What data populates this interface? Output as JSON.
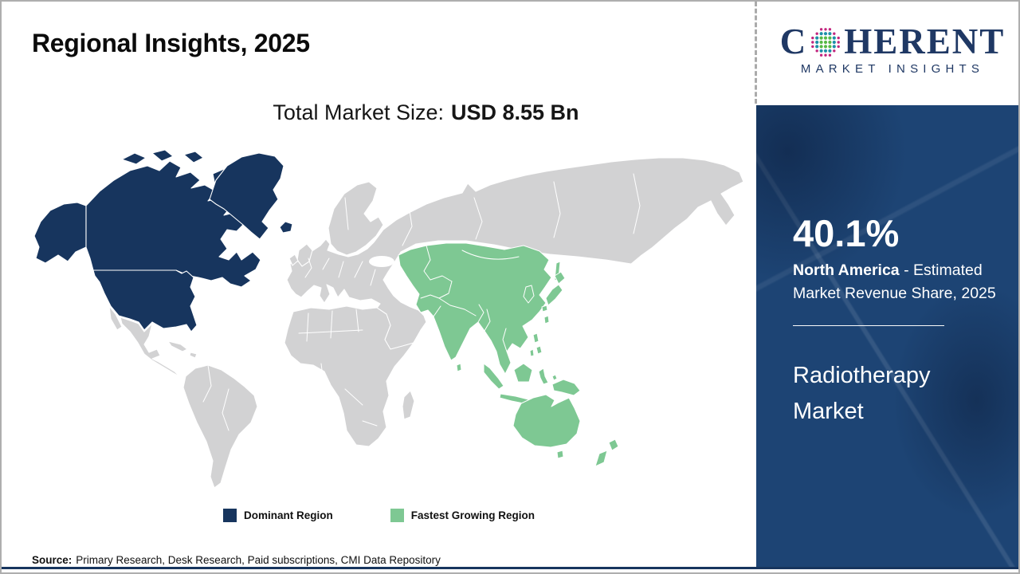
{
  "colors": {
    "map-navy": "#17355E",
    "map-green": "#7EC893",
    "map-gray": "#D2D2D3",
    "sidebar-navy": "#1D4474",
    "logo-navy": "#1F3864",
    "rule-navy": "#17355E",
    "divider-gray": "#ABABAB",
    "dot-green": "#56B947",
    "dot-teal": "#1E8FA9",
    "dot-magenta": "#C2267E"
  },
  "header": {
    "title": "Regional Insights, 2025"
  },
  "logo": {
    "letter_c": "C",
    "letters_rest": "HERENT",
    "tagline": "MARKET INSIGHTS"
  },
  "market_size": {
    "label": "Total Market Size:",
    "value": "USD 8.55 Bn"
  },
  "legend": {
    "items": [
      {
        "label": "Dominant Region",
        "color": "#17355E"
      },
      {
        "label": "Fastest Growing Region",
        "color": "#7EC893"
      }
    ]
  },
  "sidebar": {
    "share_value": "40.1%",
    "share_region": "North America",
    "share_rest": " - Estimated Market Revenue Share, 2025",
    "market_name": "Radiotherapy Market"
  },
  "source": {
    "label": "Source:",
    "text": "Primary Research, Desk Research, Paid subscriptions, CMI Data Repository"
  }
}
